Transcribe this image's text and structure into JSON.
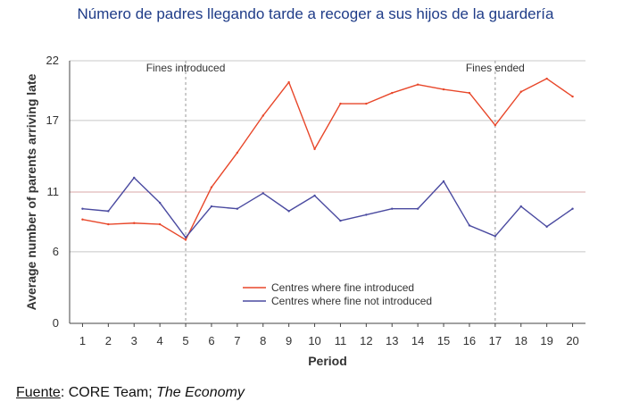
{
  "title": "Número de padres llegando tarde a recoger a sus hijos de la guardería",
  "source": {
    "label": "Fuente",
    "rest": ": CORE Team; ",
    "italic": "The Economy"
  },
  "chart_data": {
    "type": "line",
    "xlabel": "Period",
    "ylabel": "Average number of parents arriving late",
    "x": [
      1,
      2,
      3,
      4,
      5,
      6,
      7,
      8,
      9,
      10,
      11,
      12,
      13,
      14,
      15,
      16,
      17,
      18,
      19,
      20
    ],
    "yticks": [
      0,
      6,
      11,
      17,
      22
    ],
    "ylim": [
      0,
      22
    ],
    "xlim": [
      0.5,
      20.5
    ],
    "grid": true,
    "series": [
      {
        "name": "Centres where fine introduced",
        "color": "#e8472a",
        "values": [
          8.7,
          8.3,
          8.4,
          8.3,
          7.0,
          11.4,
          14.3,
          17.4,
          20.2,
          14.6,
          18.4,
          18.4,
          19.3,
          20.0,
          19.6,
          19.3,
          16.6,
          19.4,
          20.5,
          19.0
        ]
      },
      {
        "name": "Centres where fine not introduced",
        "color": "#4a4aa0",
        "values": [
          9.6,
          9.4,
          12.2,
          10.1,
          7.2,
          9.8,
          9.6,
          10.9,
          9.4,
          10.7,
          8.6,
          9.1,
          9.6,
          9.6,
          11.9,
          8.2,
          7.3,
          9.8,
          8.1,
          9.6
        ]
      }
    ],
    "annotations": [
      {
        "x": 5,
        "text": "Fines introduced"
      },
      {
        "x": 17,
        "text": "Fines ended"
      }
    ],
    "legend_position": "bottom-center"
  }
}
